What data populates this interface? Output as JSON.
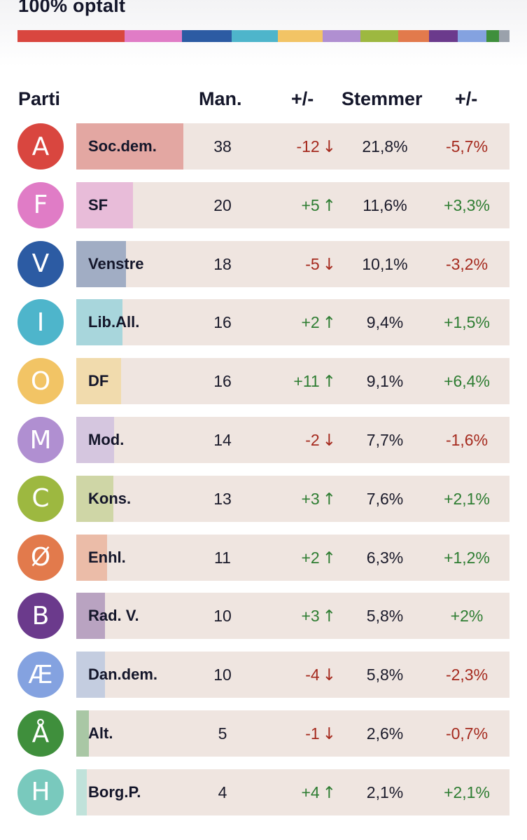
{
  "title": "100% optalt",
  "headers": {
    "party": "Parti",
    "mandates": "Man.",
    "mandates_change": "+/-",
    "votes": "Stemmer",
    "votes_change": "+/-"
  },
  "colors": {
    "up": "#2e7d32",
    "down": "#a52a1e",
    "row_bg": "#efe5e0"
  },
  "rows": [
    {
      "letter": "A",
      "name": "Soc.dem.",
      "mandates": "38",
      "mandates_change": "-12",
      "direction": "down",
      "votes": "21,8%",
      "votes_change": "-5,7%",
      "vote_share": 21.8,
      "color": "#d9463f",
      "fill": "#e3a7a2"
    },
    {
      "letter": "F",
      "name": "SF",
      "mandates": "20",
      "mandates_change": "+5",
      "direction": "up",
      "votes": "11,6%",
      "votes_change": "+3,3%",
      "vote_share": 11.6,
      "color": "#e07cc6",
      "fill": "#e8bcd9"
    },
    {
      "letter": "V",
      "name": "Venstre",
      "mandates": "18",
      "mandates_change": "-5",
      "direction": "down",
      "votes": "10,1%",
      "votes_change": "-3,2%",
      "vote_share": 10.1,
      "color": "#2c5ba3",
      "fill": "#a1adc4"
    },
    {
      "letter": "I",
      "name": "Lib.All.",
      "mandates": "16",
      "mandates_change": "+2",
      "direction": "up",
      "votes": "9,4%",
      "votes_change": "+1,5%",
      "vote_share": 9.4,
      "color": "#4eb5cb",
      "fill": "#a8d6dc"
    },
    {
      "letter": "O",
      "name": "DF",
      "mandates": "16",
      "mandates_change": "+11",
      "direction": "up",
      "votes": "9,1%",
      "votes_change": "+6,4%",
      "vote_share": 9.1,
      "color": "#f2c465",
      "fill": "#f1dbad"
    },
    {
      "letter": "M",
      "name": "Mod.",
      "mandates": "14",
      "mandates_change": "-2",
      "direction": "down",
      "votes": "7,7%",
      "votes_change": "-1,6%",
      "vote_share": 7.7,
      "color": "#b08fd1",
      "fill": "#d5c6df"
    },
    {
      "letter": "C",
      "name": "Kons.",
      "mandates": "13",
      "mandates_change": "+3",
      "direction": "up",
      "votes": "7,6%",
      "votes_change": "+2,1%",
      "vote_share": 7.6,
      "color": "#9db840",
      "fill": "#cfd6a6"
    },
    {
      "letter": "Ø",
      "name": "Enhl.",
      "mandates": "11",
      "mandates_change": "+2",
      "direction": "up",
      "votes": "6,3%",
      "votes_change": "+1,2%",
      "vote_share": 6.3,
      "color": "#e27a4c",
      "fill": "#ebbca8"
    },
    {
      "letter": "B",
      "name": "Rad. V.",
      "mandates": "10",
      "mandates_change": "+3",
      "direction": "up",
      "votes": "5,8%",
      "votes_change": "+2%",
      "vote_share": 5.8,
      "color": "#6b3a8c",
      "fill": "#b9a3c1"
    },
    {
      "letter": "Æ",
      "name": "Dan.dem.",
      "mandates": "10",
      "mandates_change": "-4",
      "direction": "down",
      "votes": "5,8%",
      "votes_change": "-2,3%",
      "vote_share": 5.8,
      "color": "#84a2e0",
      "fill": "#c4cde0"
    },
    {
      "letter": "Å",
      "name": "Alt.",
      "mandates": "5",
      "mandates_change": "-1",
      "direction": "down",
      "votes": "2,6%",
      "votes_change": "-0,7%",
      "vote_share": 2.6,
      "color": "#3f8f3c",
      "fill": "#a9c7a5"
    },
    {
      "letter": "H",
      "name": "Borg.P.",
      "mandates": "4",
      "mandates_change": "+4",
      "direction": "up",
      "votes": "2,1%",
      "votes_change": "+2,1%",
      "vote_share": 2.1,
      "color": "#79c9bd",
      "fill": "#c0e2da"
    }
  ],
  "strip_segments": [
    {
      "color": "#d9463f",
      "share": 21.8
    },
    {
      "color": "#e07cc6",
      "share": 11.6
    },
    {
      "color": "#2c5ba3",
      "share": 10.1
    },
    {
      "color": "#4eb5cb",
      "share": 9.4
    },
    {
      "color": "#f2c465",
      "share": 9.1
    },
    {
      "color": "#b08fd1",
      "share": 7.7
    },
    {
      "color": "#9db840",
      "share": 7.6
    },
    {
      "color": "#e27a4c",
      "share": 6.3
    },
    {
      "color": "#6b3a8c",
      "share": 5.8
    },
    {
      "color": "#84a2e0",
      "share": 5.8
    },
    {
      "color": "#3f8f3c",
      "share": 2.6
    },
    {
      "color": "#9aa1ab",
      "share": 2.1
    }
  ]
}
